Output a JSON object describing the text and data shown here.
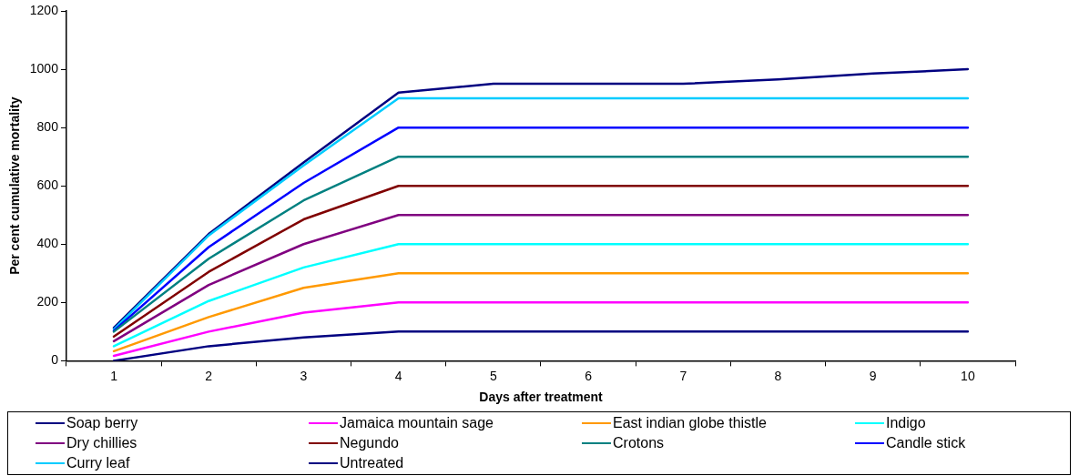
{
  "chart_data": {
    "type": "line",
    "xlabel": "Days after treatment",
    "ylabel": "Per cent cumulative mortality",
    "categories": [
      "1",
      "2",
      "3",
      "4",
      "5",
      "6",
      "7",
      "8",
      "9",
      "10"
    ],
    "ylim": [
      0,
      1200
    ],
    "yticks": [
      0,
      200,
      400,
      600,
      800,
      1000,
      1200
    ],
    "grid": false,
    "legend": "bottom",
    "marker": "none",
    "line_style": "solid",
    "series": [
      {
        "name": "Soap berry",
        "color": "#000080",
        "values": [
          0,
          50,
          80,
          100,
          100,
          100,
          100,
          100,
          100,
          100
        ]
      },
      {
        "name": "Jamaica mountain sage",
        "color": "#ff00ff",
        "values": [
          17,
          100,
          165,
          200,
          200,
          200,
          200,
          200,
          200,
          200
        ]
      },
      {
        "name": "East indian globe thistle",
        "color": "#ff9900",
        "values": [
          33,
          150,
          250,
          300,
          300,
          300,
          300,
          300,
          300,
          300
        ]
      },
      {
        "name": "Indigo",
        "color": "#00ffff",
        "values": [
          50,
          205,
          320,
          400,
          400,
          400,
          400,
          400,
          400,
          400
        ]
      },
      {
        "name": "Dry chillies",
        "color": "#800080",
        "values": [
          67,
          260,
          400,
          500,
          500,
          500,
          500,
          500,
          500,
          500
        ]
      },
      {
        "name": "Negundo",
        "color": "#800000",
        "values": [
          83,
          305,
          485,
          600,
          600,
          600,
          600,
          600,
          600,
          600
        ]
      },
      {
        "name": "Crotons",
        "color": "#008080",
        "values": [
          100,
          350,
          550,
          700,
          700,
          700,
          700,
          700,
          700,
          700
        ]
      },
      {
        "name": "Candle stick",
        "color": "#0000ff",
        "values": [
          103,
          390,
          610,
          800,
          800,
          800,
          800,
          800,
          800,
          800
        ]
      },
      {
        "name": "Curry leaf",
        "color": "#00ccff",
        "values": [
          108,
          430,
          670,
          900,
          900,
          900,
          900,
          900,
          900,
          900
        ]
      },
      {
        "name": "Untreated",
        "color": "#000080",
        "values": [
          113,
          435,
          680,
          920,
          950,
          950,
          950,
          965,
          985,
          1000
        ]
      }
    ]
  }
}
